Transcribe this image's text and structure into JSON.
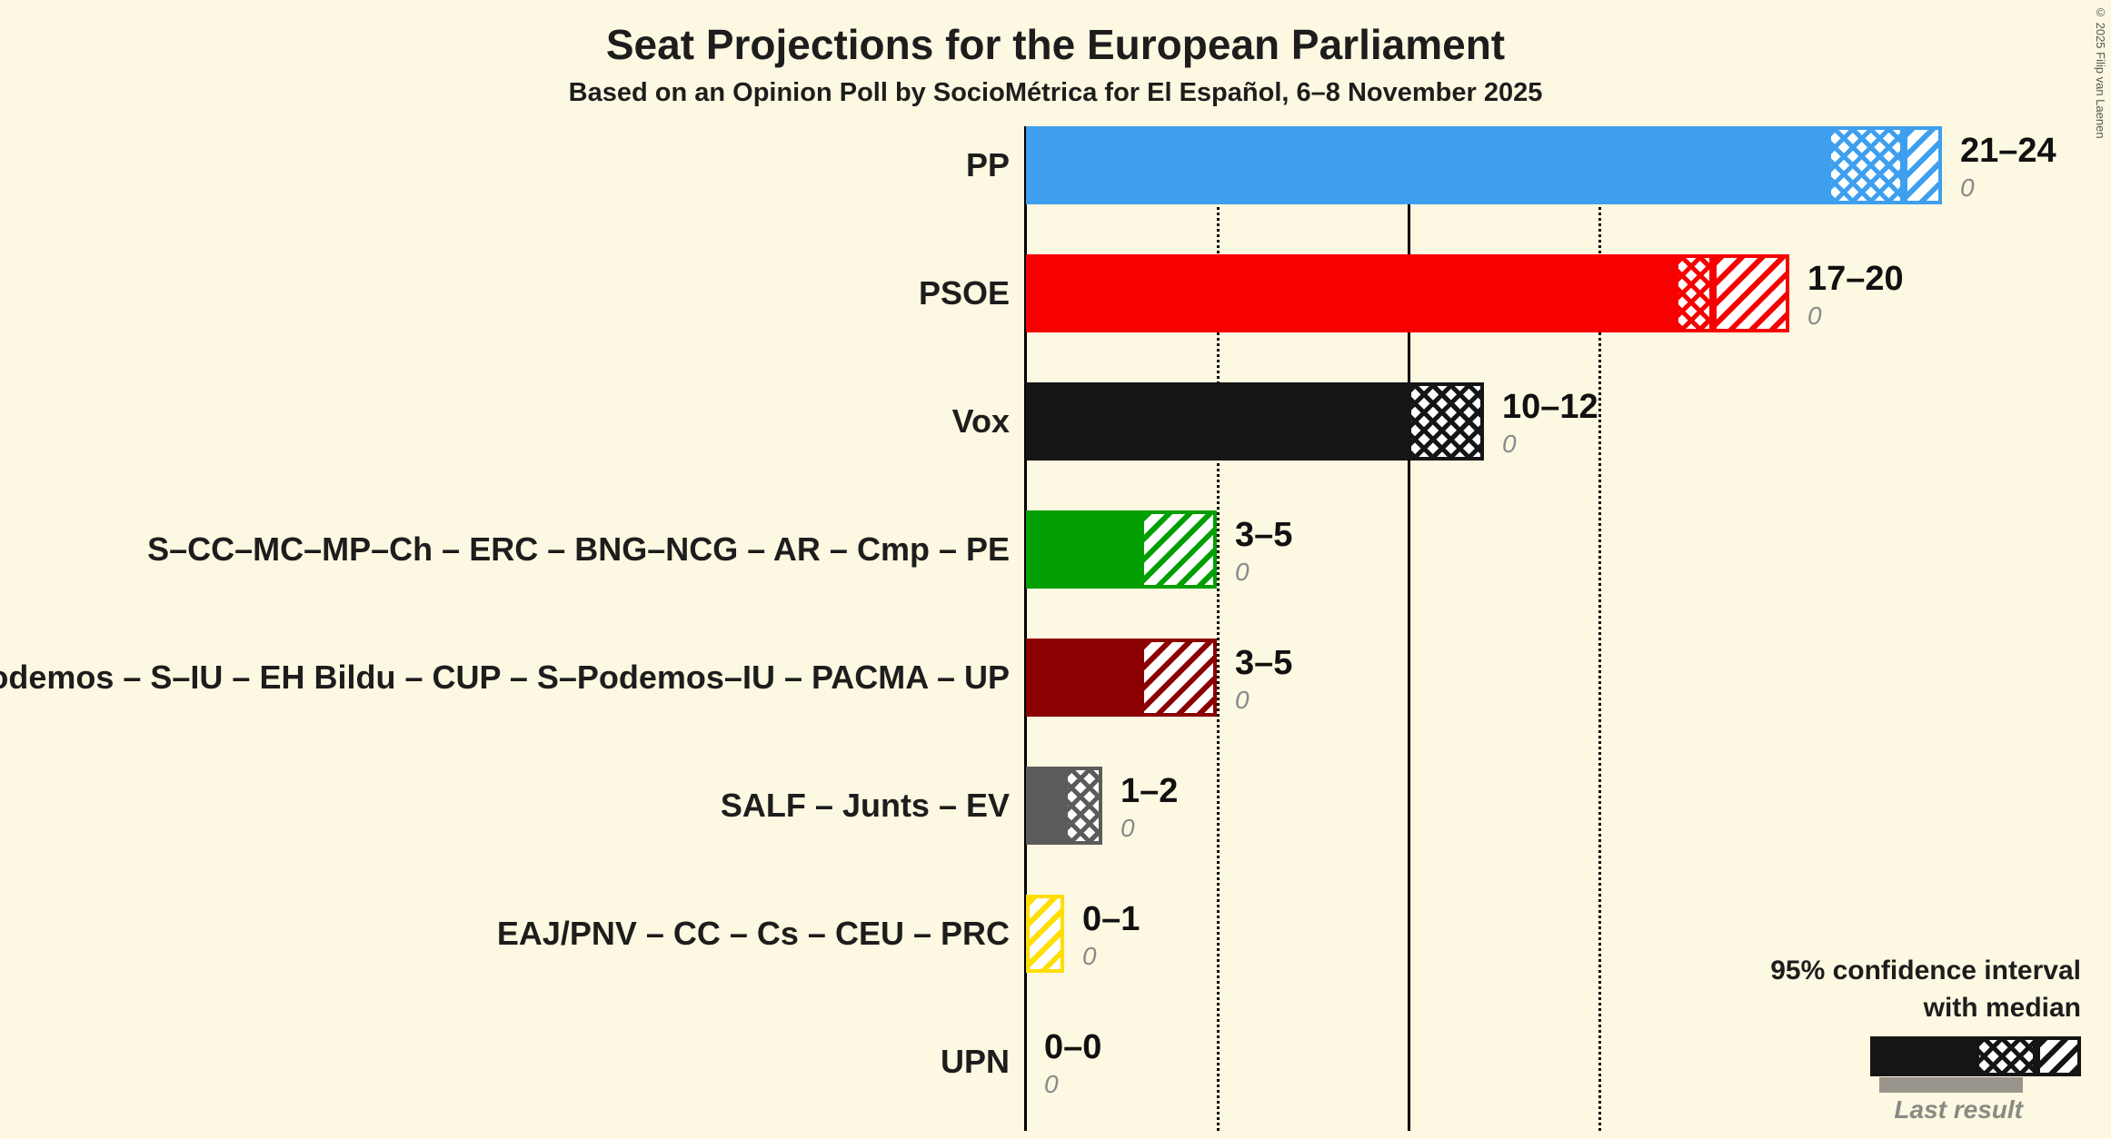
{
  "title": "Seat Projections for the European Parliament",
  "subtitle": "Based on an Opinion Poll by SocioMétrica for El Español, 6–8 November 2025",
  "copyright": "© 2025 Filip van Laenen",
  "legend": {
    "line1": "95% confidence interval",
    "line2": "with median",
    "last_result_label": "Last result"
  },
  "chart_data": {
    "type": "bar",
    "orientation": "horizontal",
    "title": "Seat Projections for the European Parliament",
    "subtitle": "Based on an Opinion Poll by SocioMétrica for El Español, 6–8 November 2025",
    "unit": "seats",
    "axis": {
      "min": 0,
      "max": 24,
      "gridlines": [
        {
          "value": 5,
          "style": "dotted"
        },
        {
          "value": 10,
          "style": "solid"
        },
        {
          "value": 15,
          "style": "dotted"
        }
      ]
    },
    "rows": [
      {
        "label": "PP",
        "color": "#3E9FEF",
        "ci_low": 21,
        "median": 23,
        "ci_high": 24,
        "range_label": "21–24",
        "last_result": 0,
        "last_result_text": "0"
      },
      {
        "label": "PSOE",
        "color": "#F70000",
        "ci_low": 17,
        "median": 18,
        "ci_high": 20,
        "range_label": "17–20",
        "last_result": 0,
        "last_result_text": "0"
      },
      {
        "label": "Vox",
        "color": "#151515",
        "ci_low": 10,
        "median": 12,
        "ci_high": 12,
        "range_label": "10–12",
        "last_result": 0,
        "last_result_text": "0"
      },
      {
        "label": "S–CC–MC–MP–Ch – ERC – BNG–NCG – AR – Cmp – PE",
        "color": "#029F02",
        "ci_low": 3,
        "median": 3,
        "ci_high": 5,
        "range_label": "3–5",
        "last_result": 0,
        "last_result_text": "0"
      },
      {
        "label": "Podemos – S–IU – EH Bildu – CUP – S–Podemos–IU – PACMA – UP",
        "color": "#8B0000",
        "ci_low": 3,
        "median": 3,
        "ci_high": 5,
        "range_label": "3–5",
        "last_result": 0,
        "last_result_text": "0"
      },
      {
        "label": "SALF – Junts – EV",
        "color": "#5B5B5B",
        "ci_low": 1,
        "median": 2,
        "ci_high": 2,
        "range_label": "1–2",
        "last_result": 0,
        "last_result_text": "0"
      },
      {
        "label": "EAJ/PNV – CC – Cs – CEU – PRC",
        "color": "#FFDE00",
        "ci_low": 0,
        "median": 0,
        "ci_high": 1,
        "range_label": "0–1",
        "last_result": 0,
        "last_result_text": "0"
      },
      {
        "label": "UPN",
        "color": "#5B5B5B",
        "ci_low": 0,
        "median": 0,
        "ci_high": 0,
        "range_label": "0–0",
        "last_result": 0,
        "last_result_text": "0"
      }
    ]
  }
}
